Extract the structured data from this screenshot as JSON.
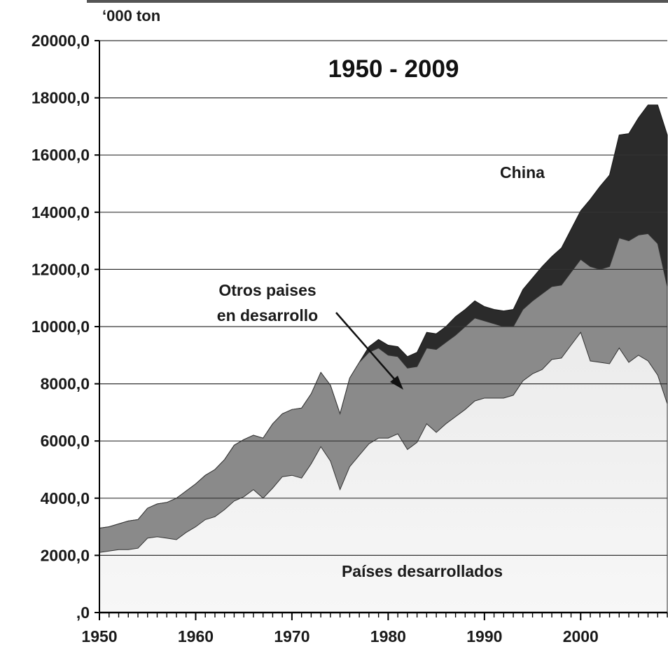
{
  "chart_data": {
    "type": "area",
    "stacked": true,
    "title": "1950 - 2009",
    "unit_label": "‘000 ton",
    "xlim": [
      1950,
      2009
    ],
    "ylim": [
      0,
      20000
    ],
    "x_ticks": [
      1950,
      1960,
      1970,
      1980,
      1990,
      2000
    ],
    "y_ticks": [
      0,
      2000,
      4000,
      6000,
      8000,
      10000,
      12000,
      14000,
      16000,
      18000,
      20000
    ],
    "y_tick_labels": [
      ",0",
      "2000,0",
      "4000,0",
      "6000,0",
      "8000,0",
      "10000,0",
      "12000,0",
      "14000,0",
      "16000,0",
      "18000,0",
      "20000,0"
    ],
    "grid": "horizontal",
    "years": [
      1950,
      1951,
      1952,
      1953,
      1954,
      1955,
      1956,
      1957,
      1958,
      1959,
      1960,
      1961,
      1962,
      1963,
      1964,
      1965,
      1966,
      1967,
      1968,
      1969,
      1970,
      1971,
      1972,
      1973,
      1974,
      1975,
      1976,
      1977,
      1978,
      1979,
      1980,
      1981,
      1982,
      1983,
      1984,
      1985,
      1986,
      1987,
      1988,
      1989,
      1990,
      1991,
      1992,
      1993,
      1994,
      1995,
      1996,
      1997,
      1998,
      1999,
      2000,
      2001,
      2002,
      2003,
      2004,
      2005,
      2006,
      2007,
      2008,
      2009
    ],
    "series": [
      {
        "name": "Países desarrollados",
        "color": "#e6e6e6",
        "values": [
          2100,
          2150,
          2200,
          2200,
          2250,
          2600,
          2650,
          2600,
          2550,
          2800,
          3000,
          3250,
          3350,
          3600,
          3900,
          4050,
          4300,
          4000,
          4350,
          4750,
          4800,
          4700,
          5200,
          5800,
          5300,
          4300,
          5100,
          5500,
          5900,
          6100,
          6100,
          6250,
          5700,
          5950,
          6600,
          6300,
          6600,
          6850,
          7100,
          7400,
          7500,
          7500,
          7500,
          7600,
          8100,
          8350,
          8500,
          8850,
          8900,
          9350,
          9800,
          8800,
          8750,
          8700,
          9250,
          8750,
          9000,
          8800,
          8300,
          7300
        ]
      },
      {
        "name": "Otros paises en desarrollo",
        "color": "#8c8c8c",
        "values": [
          850,
          850,
          900,
          1000,
          1000,
          1050,
          1150,
          1250,
          1450,
          1450,
          1500,
          1550,
          1650,
          1750,
          1950,
          2000,
          1900,
          2100,
          2250,
          2200,
          2300,
          2450,
          2450,
          2600,
          2650,
          2650,
          3100,
          3250,
          3200,
          3150,
          2900,
          2700,
          2850,
          2650,
          2650,
          2900,
          2850,
          2850,
          2900,
          2900,
          2700,
          2600,
          2500,
          2400,
          2500,
          2550,
          2650,
          2550,
          2550,
          2550,
          2550,
          3300,
          3250,
          3400,
          3850,
          4250,
          4200,
          4450,
          4600,
          4100
        ]
      },
      {
        "name": "China",
        "color": "#2b2b2b",
        "values": [
          0,
          0,
          0,
          0,
          0,
          0,
          0,
          0,
          0,
          0,
          0,
          0,
          0,
          0,
          0,
          0,
          0,
          0,
          0,
          0,
          0,
          0,
          0,
          0,
          0,
          0,
          0,
          0,
          200,
          300,
          350,
          350,
          400,
          500,
          550,
          550,
          550,
          650,
          600,
          600,
          500,
          500,
          550,
          600,
          700,
          800,
          950,
          1050,
          1300,
          1500,
          1700,
          2350,
          2900,
          3200,
          3600,
          3750,
          4100,
          4500,
          4850,
          5300
        ]
      }
    ],
    "annotations": [
      {
        "text": "China",
        "target_series": "China"
      },
      {
        "text": "Otros paises",
        "text2": "en desarrollo",
        "target_series": "Otros paises en desarrollo",
        "arrow": true
      },
      {
        "text": "Países desarrollados",
        "target_series": "Países desarrollados"
      }
    ]
  }
}
